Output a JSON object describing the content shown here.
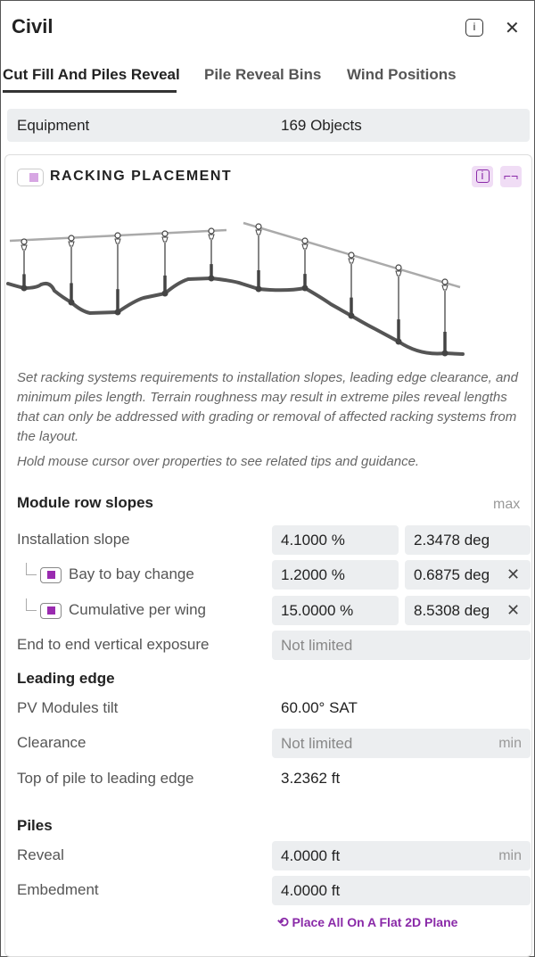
{
  "header": {
    "title": "Civil",
    "info_icon": "info-icon",
    "close_icon": "close-icon"
  },
  "tabs": [
    {
      "label": "Cut Fill And Piles Reveal",
      "active": true
    },
    {
      "label": "Pile Reveal Bins"
    },
    {
      "label": "Wind Positions"
    }
  ],
  "equipment": {
    "label": "Equipment",
    "value": "169 Objects"
  },
  "section": {
    "title": "RACKING PLACEMENT",
    "accent": "#8a2aa8",
    "description": "Set racking systems requirements to installation slopes, leading edge clearance, and minimum piles length. Terrain roughness may result in extreme piles reveal lengths that can only be addressed with grading or removal of affected racking systems from the layout.",
    "hint": "Hold mouse cursor over properties to see related tips and guidance."
  },
  "slopes": {
    "heading": "Module row slopes",
    "max_label": "max",
    "installation": {
      "label": "Installation slope",
      "pct": "4.1000 %",
      "deg": "2.3478 deg"
    },
    "bay": {
      "label": "Bay to bay change",
      "pct": "1.2000 %",
      "deg": "0.6875 deg",
      "checked": true
    },
    "cumulative": {
      "label": "Cumulative per wing",
      "pct": "15.0000 %",
      "deg": "8.5308 deg",
      "checked": true
    },
    "end": {
      "label": "End to end vertical exposure",
      "value": "Not limited"
    }
  },
  "leading": {
    "heading": "Leading edge",
    "tilt": {
      "label": "PV Modules tilt",
      "value": "60.00° SAT"
    },
    "clearance": {
      "label": "Clearance",
      "value": "Not limited",
      "hint": "min"
    },
    "top": {
      "label": "Top of pile to leading edge",
      "value": "3.2362 ft"
    }
  },
  "piles": {
    "heading": "Piles",
    "reveal": {
      "label": "Reveal",
      "value": "4.0000 ft",
      "hint": "min"
    },
    "embedment": {
      "label": "Embedment",
      "value": "4.0000 ft"
    },
    "flat_link": "Place All On A Flat 2D Plane"
  }
}
